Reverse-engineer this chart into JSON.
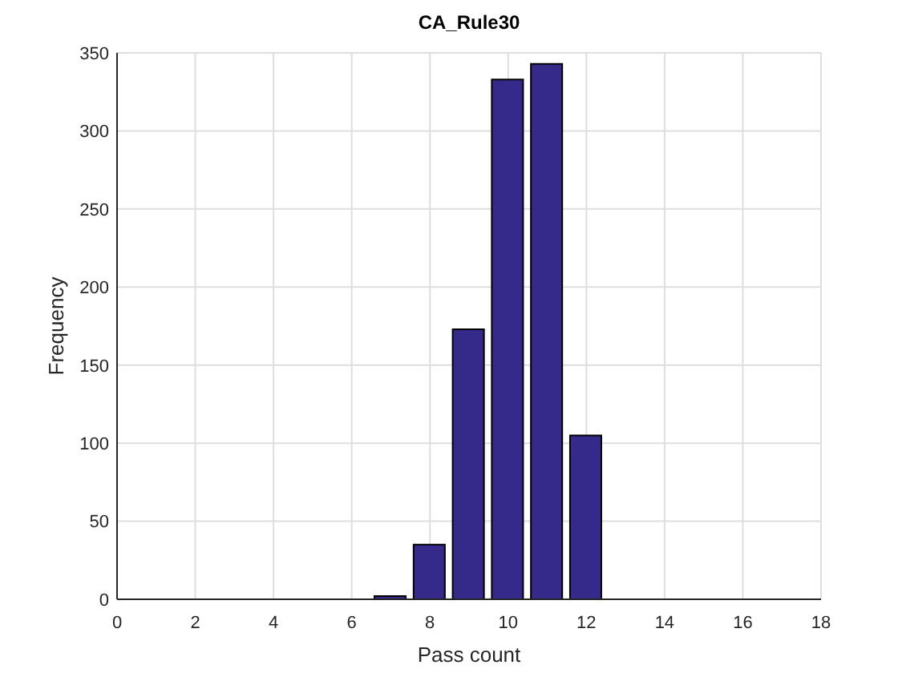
{
  "chart_data": {
    "type": "bar",
    "title": "CA_Rule30",
    "xlabel": "Pass count",
    "ylabel": "Frequency",
    "x": [
      7,
      8,
      9,
      10,
      11,
      12
    ],
    "values": [
      2,
      35,
      173,
      333,
      343,
      105
    ],
    "color": "#35298a",
    "xlim": [
      0,
      18
    ],
    "xticks": [
      0,
      2,
      4,
      6,
      8,
      10,
      12,
      14,
      16,
      18
    ],
    "ylim": [
      0,
      350
    ],
    "yticks": [
      0,
      50,
      100,
      150,
      200,
      250,
      300,
      350
    ],
    "grid": true
  }
}
